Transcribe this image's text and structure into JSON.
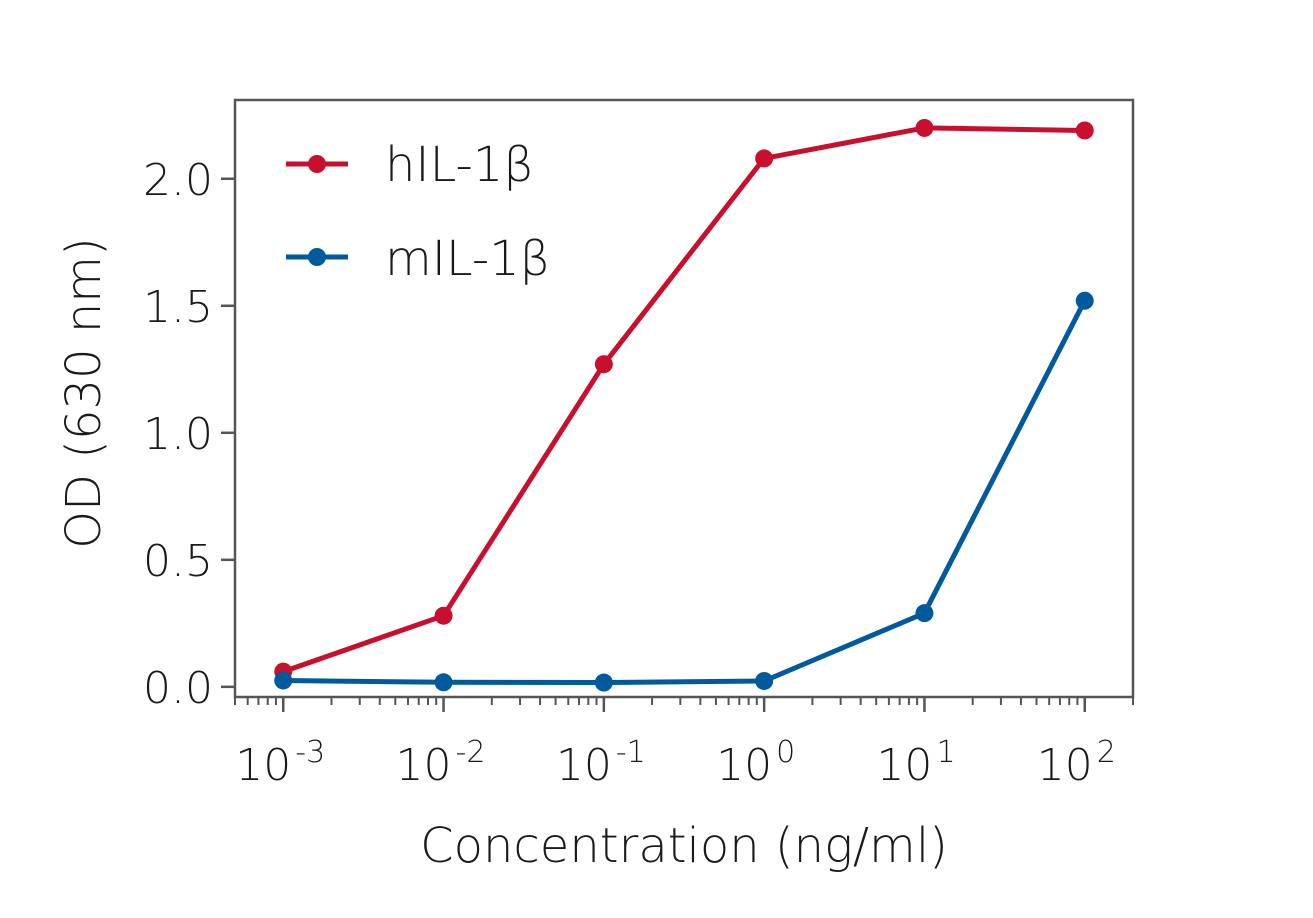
{
  "chart_data": {
    "type": "line",
    "x_scale": "log",
    "x": [
      0.001,
      0.01,
      0.1,
      1,
      10,
      100
    ],
    "xlim": [
      0.0005,
      200
    ],
    "ylim": [
      -0.04,
      2.31
    ],
    "xticks": [
      {
        "value": 0.001,
        "base": "10",
        "exp": "-3"
      },
      {
        "value": 0.01,
        "base": "10",
        "exp": "-2"
      },
      {
        "value": 0.1,
        "base": "10",
        "exp": "-1"
      },
      {
        "value": 1,
        "base": "10",
        "exp": "0"
      },
      {
        "value": 10,
        "base": "10",
        "exp": "1"
      },
      {
        "value": 100,
        "base": "10",
        "exp": "2"
      }
    ],
    "yticks": [
      {
        "value": 0.0,
        "label": "0.0"
      },
      {
        "value": 0.5,
        "label": "0.5"
      },
      {
        "value": 1.0,
        "label": "1.0"
      },
      {
        "value": 1.5,
        "label": "1.5"
      },
      {
        "value": 2.0,
        "label": "2.0"
      }
    ],
    "xlabel": "Concentration (ng/ml)",
    "ylabel": "OD (630 nm)",
    "grid": false,
    "legend_position": "top-left",
    "series": [
      {
        "name": "hIL-1β",
        "color": "#c8102e",
        "values": [
          0.06,
          0.28,
          1.27,
          2.08,
          2.2,
          2.19
        ]
      },
      {
        "name": "mIL-1β",
        "color": "#005a9c",
        "values": [
          0.025,
          0.018,
          0.017,
          0.023,
          0.29,
          1.52
        ]
      }
    ]
  }
}
